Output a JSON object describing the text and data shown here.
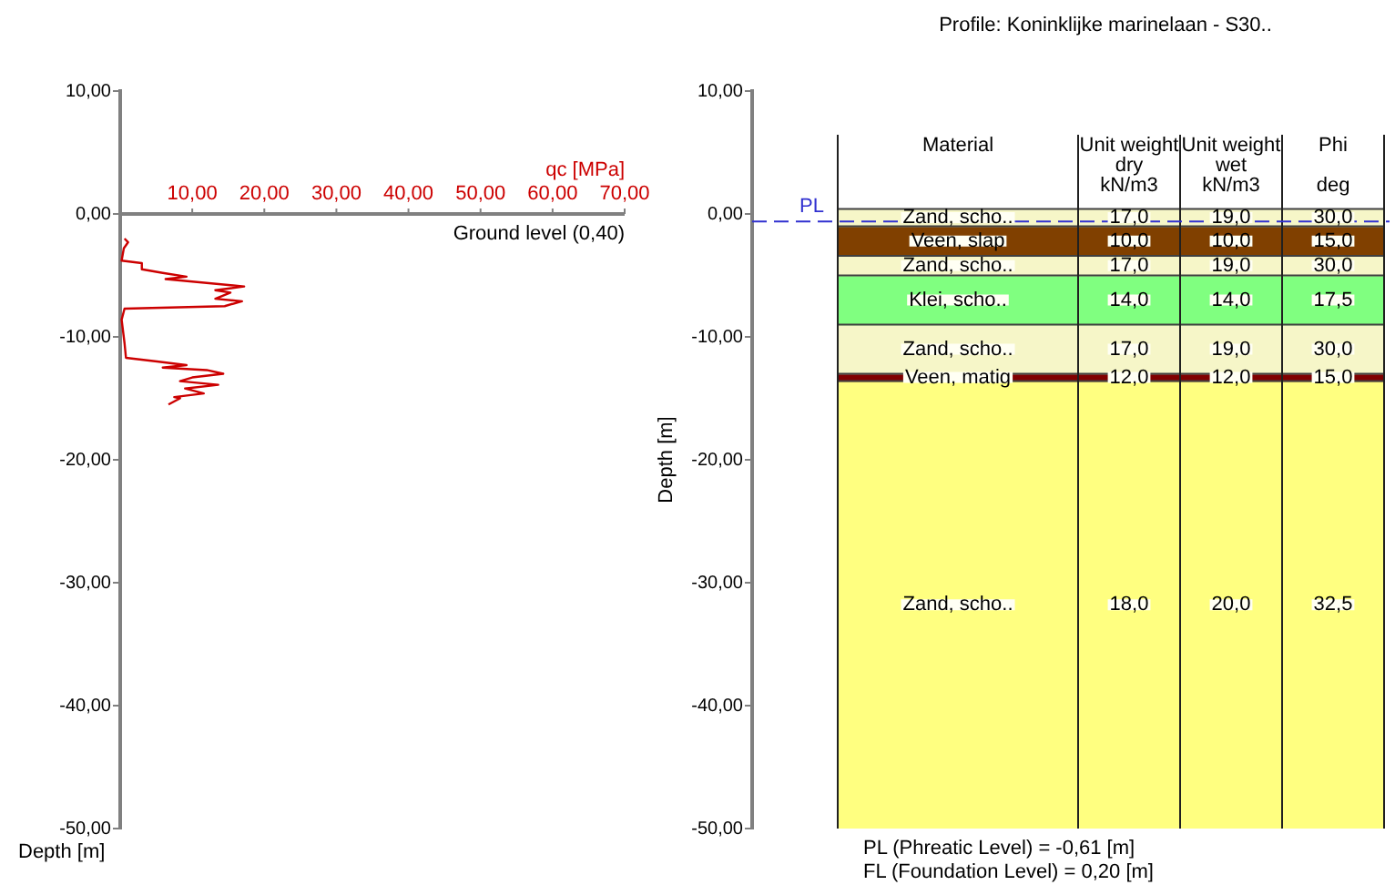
{
  "chart_data": [
    {
      "type": "line",
      "xlabel": "qc [MPa]",
      "ylabel": "Depth [m]",
      "color": "#cc0000",
      "x": [
        0.6,
        1.1,
        0.5,
        0.2,
        3.0,
        3.0,
        5.9,
        9.2,
        6.3,
        17.2,
        13.2,
        15.3,
        13.2,
        16.9,
        14.5,
        0.6,
        0.2,
        0.6,
        0.8,
        5.1,
        9.2,
        5.9,
        12.0,
        14.3,
        10.0,
        8.3,
        13.6,
        9.0,
        11.6,
        7.5,
        8.3,
        6.7
      ],
      "values": [
        -2.0,
        -2.3,
        -2.8,
        -3.8,
        -4.0,
        -4.5,
        -4.8,
        -5.1,
        -5.3,
        -5.9,
        -6.2,
        -6.4,
        -6.9,
        -7.1,
        -7.5,
        -7.7,
        -8.6,
        -10.5,
        -11.7,
        -12.0,
        -12.3,
        -12.5,
        -12.7,
        -13.0,
        -13.3,
        -13.6,
        -13.9,
        -14.2,
        -14.6,
        -14.9,
        -15.0,
        -15.5
      ],
      "xlim": [
        0,
        70
      ],
      "xticks": [
        {
          "value": 10,
          "label": "10,00"
        },
        {
          "value": 20,
          "label": "20,00"
        },
        {
          "value": 30,
          "label": "30,00"
        },
        {
          "value": 40,
          "label": "40,00"
        },
        {
          "value": 50,
          "label": "50,00"
        },
        {
          "value": 60,
          "label": "60,00"
        },
        {
          "value": 70,
          "label": "70,00"
        }
      ],
      "ylim": [
        -50,
        10
      ],
      "yticks": [
        {
          "value": 10,
          "label": "10,00"
        },
        {
          "value": 0,
          "label": "0,00"
        },
        {
          "value": -10,
          "label": "-10,00"
        },
        {
          "value": -20,
          "label": "-20,00"
        },
        {
          "value": -30,
          "label": "-30,00"
        },
        {
          "value": -40,
          "label": "-40,00"
        },
        {
          "value": -50,
          "label": "-50,00"
        }
      ],
      "annotations": [
        "Ground level (0,40)"
      ]
    },
    {
      "type": "bar",
      "title": "Profile: Koninklijke marinelaan - S30..",
      "ylabel": "Depth [m]",
      "categories": [
        null
      ],
      "ylim": [
        -50,
        10
      ],
      "yticks": [
        {
          "value": 10,
          "label": "10,00"
        },
        {
          "value": 0,
          "label": "0,00"
        },
        {
          "value": -10,
          "label": "-10,00"
        },
        {
          "value": -20,
          "label": "-20,00"
        },
        {
          "value": -30,
          "label": "-30,00"
        },
        {
          "value": -40,
          "label": "-40,00"
        },
        {
          "value": -50,
          "label": "-50,00"
        }
      ],
      "series": [
        {
          "name": "Zand, scho..",
          "color": "#f6f6c8",
          "values": [
            -1.4
          ],
          "base": [
            0.4
          ]
        },
        {
          "name": "Veen, slap",
          "color": "#804000",
          "values": [
            -2.4
          ],
          "base": [
            -1.0
          ]
        },
        {
          "name": "Zand, scho..",
          "color": "#f6f6c8",
          "values": [
            -1.6
          ],
          "base": [
            -3.4
          ]
        },
        {
          "name": "Klei, scho..",
          "color": "#80ff80",
          "values": [
            -4.0
          ],
          "base": [
            -5.0
          ]
        },
        {
          "name": "Zand, scho..",
          "color": "#f6f6c8",
          "values": [
            -4.0
          ],
          "base": [
            -9.0
          ]
        },
        {
          "name": "Veen, matig",
          "color": "#800000",
          "values": [
            -0.6
          ],
          "base": [
            -13.0
          ]
        },
        {
          "name": "Zand, scho..",
          "color": "#ffff80",
          "values": [
            -36.4
          ],
          "base": [
            -13.6
          ]
        }
      ],
      "ref_lines": [
        {
          "axis": "y",
          "value": -0.61,
          "label": "PL",
          "color": "#3030d0",
          "line_style": "dashed"
        }
      ],
      "annotations": [
        "Material",
        "Unit weight\ndry\nkN/m3",
        "Unit weight\nwet\nkN/m3",
        "Phi\n\ndeg",
        "17,0",
        "19,0",
        "30,0",
        "10,0",
        "10,0",
        "15,0",
        "17,0",
        "19,0",
        "30,0",
        "14,0",
        "14,0",
        "17,5",
        "17,0",
        "19,0",
        "30,0",
        "12,0",
        "12,0",
        "15,0",
        "18,0",
        "20,0",
        "32,5",
        "PL (Phreatic Level) = -0,61 [m]",
        "FL (Foundation Level) = 0,20 [m]"
      ]
    }
  ]
}
